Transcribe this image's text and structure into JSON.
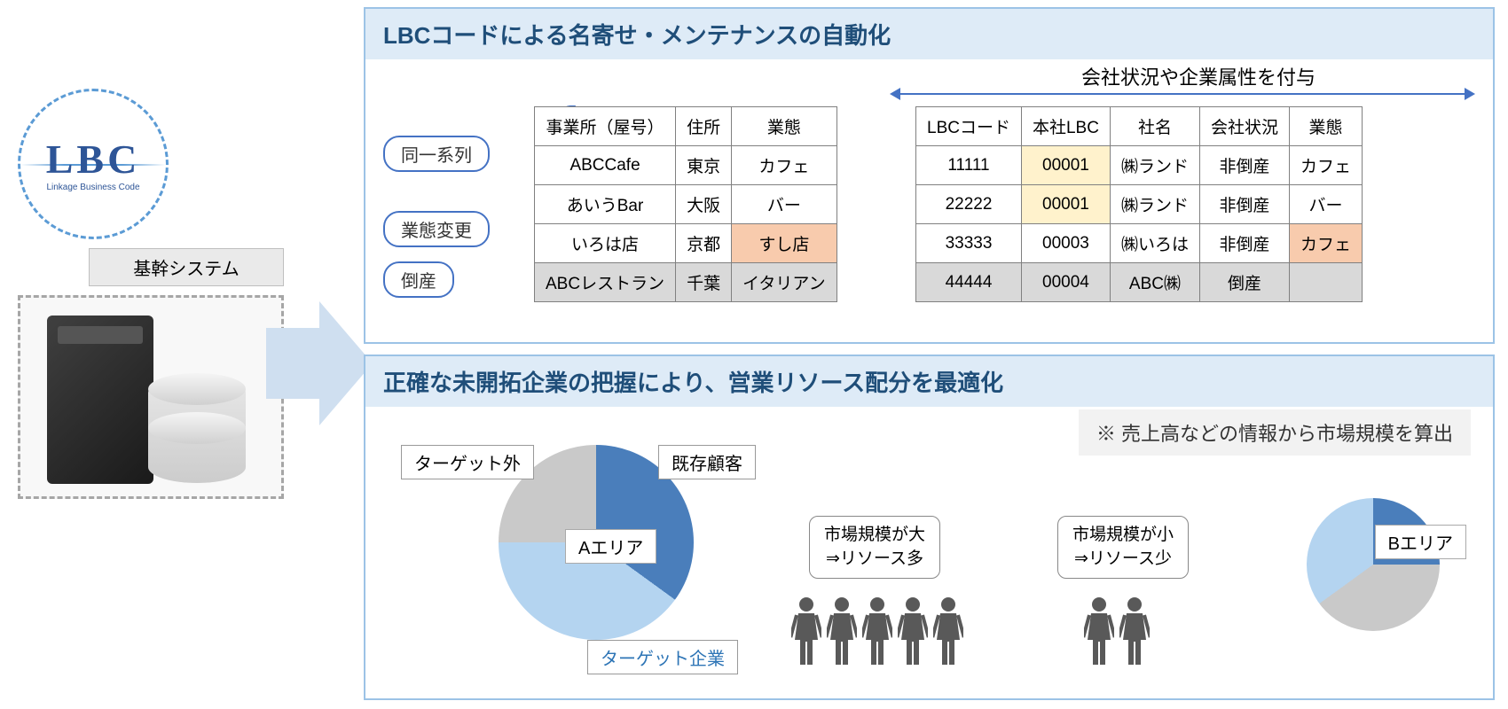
{
  "logo": {
    "text": "LBC",
    "subtitle": "Linkage Business Code"
  },
  "left": {
    "system_label": "基幹システム"
  },
  "panel1": {
    "title": "LBCコードによる名寄せ・メンテナンスの自動化",
    "attribute_note": "会社状況や企業属性を付与",
    "tags": {
      "same_series": "同一系列",
      "type_change": "業態変更",
      "bankruptcy": "倒産"
    },
    "table_left": {
      "columns": [
        "事業所（屋号）",
        "住所",
        "業態"
      ],
      "rows": [
        {
          "cells": [
            "ABCCafe",
            "東京",
            "カフェ"
          ],
          "highlight": [
            null,
            null,
            null
          ]
        },
        {
          "cells": [
            "あいうBar",
            "大阪",
            "バー"
          ],
          "highlight": [
            null,
            null,
            null
          ]
        },
        {
          "cells": [
            "いろは店",
            "京都",
            "すし店"
          ],
          "highlight": [
            null,
            null,
            "orange"
          ]
        },
        {
          "cells": [
            "ABCレストラン",
            "千葉",
            "イタリアン"
          ],
          "highlight": [
            "gray",
            "gray",
            "gray"
          ]
        }
      ]
    },
    "table_right": {
      "columns": [
        "LBCコード",
        "本社LBC",
        "社名",
        "会社状況",
        "業態"
      ],
      "rows": [
        {
          "cells": [
            "11111",
            "00001",
            "㈱ランド",
            "非倒産",
            "カフェ"
          ],
          "highlight": [
            null,
            "yellow",
            null,
            null,
            null
          ]
        },
        {
          "cells": [
            "22222",
            "00001",
            "㈱ランド",
            "非倒産",
            "バー"
          ],
          "highlight": [
            null,
            "yellow",
            null,
            null,
            null
          ]
        },
        {
          "cells": [
            "33333",
            "00003",
            "㈱いろは",
            "非倒産",
            "カフェ"
          ],
          "highlight": [
            null,
            null,
            null,
            null,
            "orange"
          ]
        },
        {
          "cells": [
            "44444",
            "00004",
            "ABC㈱",
            "倒産",
            ""
          ],
          "highlight": [
            "gray",
            "gray",
            "gray",
            "gray",
            "gray"
          ]
        }
      ]
    }
  },
  "panel2": {
    "title": "正確な未開拓企業の把握により、営業リソース配分を最適化",
    "note": "※ 売上高などの情報から市場規模を算出",
    "pie_a": {
      "center": "Aエリア",
      "slices": [
        {
          "label": "既存顧客",
          "value": 35,
          "color": "#4a7ebb",
          "label_color": "#333333"
        },
        {
          "label": "ターゲット企業",
          "value": 40,
          "color": "#b4d4f0",
          "label_color": "#2e75b6"
        },
        {
          "label": "ターゲット外",
          "value": 25,
          "color": "#c9c9c9",
          "label_color": "#333333"
        }
      ]
    },
    "pie_b": {
      "center": "Bエリア",
      "slices": [
        {
          "value": 25,
          "color": "#4a7ebb"
        },
        {
          "value": 40,
          "color": "#c9c9c9"
        },
        {
          "value": 35,
          "color": "#b4d4f0"
        }
      ]
    },
    "callout_big": {
      "line1": "市場規模が大",
      "line2": "⇒リソース多"
    },
    "callout_small": {
      "line1": "市場規模が小",
      "line2": "⇒リソース少"
    },
    "people_big_count": 5,
    "people_small_count": 2,
    "person_color": "#595959"
  },
  "colors": {
    "panel_border": "#9cc3e6",
    "panel_title_bg": "#deebf7",
    "panel_title_fg": "#1f4e79",
    "accent": "#4472c4",
    "arrow_fill": "#cfdff0"
  }
}
